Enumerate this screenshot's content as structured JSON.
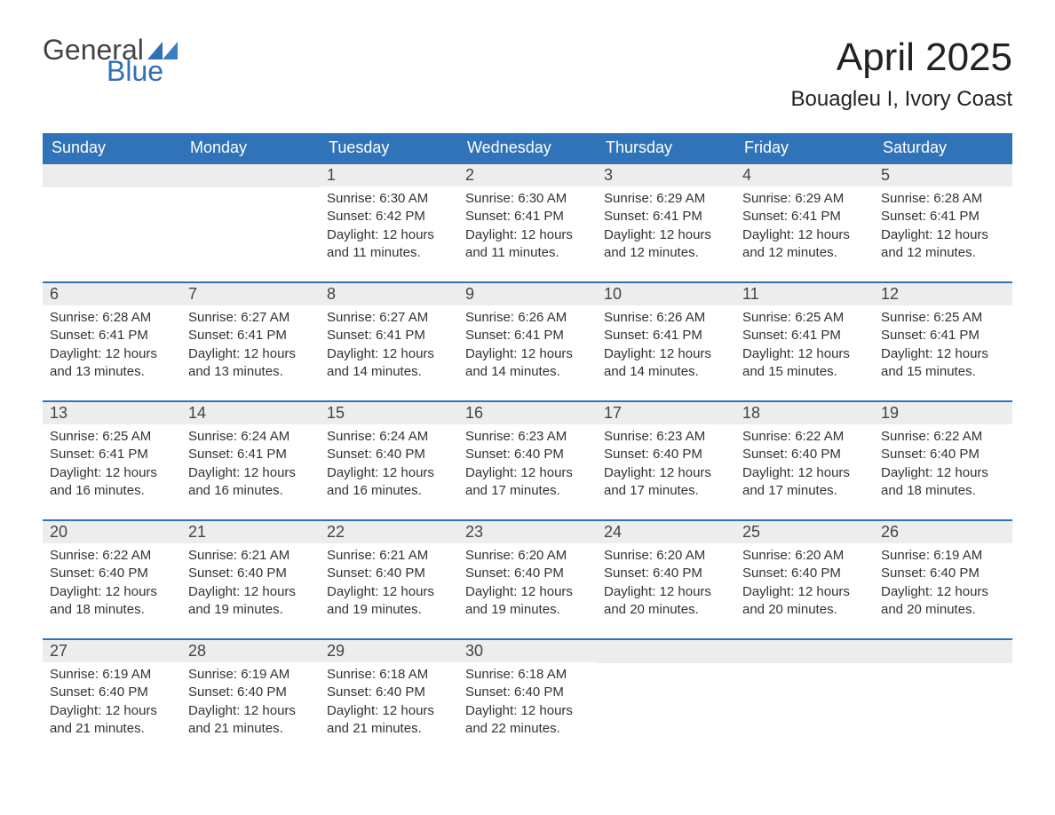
{
  "logo": {
    "textA": "General",
    "textB": "Blue",
    "colorA": "#444444",
    "colorB": "#2f70b6"
  },
  "title": "April 2025",
  "location": "Bouagleu I, Ivory Coast",
  "colors": {
    "header_bg": "#3173b8",
    "header_text": "#ffffff",
    "daynum_bg": "#ededed",
    "row_border": "#3173b8",
    "body_text": "#333333",
    "bg": "#ffffff"
  },
  "day_headers": [
    "Sunday",
    "Monday",
    "Tuesday",
    "Wednesday",
    "Thursday",
    "Friday",
    "Saturday"
  ],
  "weeks": [
    [
      null,
      null,
      {
        "n": "1",
        "sunrise": "Sunrise: 6:30 AM",
        "sunset": "Sunset: 6:42 PM",
        "dayl1": "Daylight: 12 hours",
        "dayl2": "and 11 minutes."
      },
      {
        "n": "2",
        "sunrise": "Sunrise: 6:30 AM",
        "sunset": "Sunset: 6:41 PM",
        "dayl1": "Daylight: 12 hours",
        "dayl2": "and 11 minutes."
      },
      {
        "n": "3",
        "sunrise": "Sunrise: 6:29 AM",
        "sunset": "Sunset: 6:41 PM",
        "dayl1": "Daylight: 12 hours",
        "dayl2": "and 12 minutes."
      },
      {
        "n": "4",
        "sunrise": "Sunrise: 6:29 AM",
        "sunset": "Sunset: 6:41 PM",
        "dayl1": "Daylight: 12 hours",
        "dayl2": "and 12 minutes."
      },
      {
        "n": "5",
        "sunrise": "Sunrise: 6:28 AM",
        "sunset": "Sunset: 6:41 PM",
        "dayl1": "Daylight: 12 hours",
        "dayl2": "and 12 minutes."
      }
    ],
    [
      {
        "n": "6",
        "sunrise": "Sunrise: 6:28 AM",
        "sunset": "Sunset: 6:41 PM",
        "dayl1": "Daylight: 12 hours",
        "dayl2": "and 13 minutes."
      },
      {
        "n": "7",
        "sunrise": "Sunrise: 6:27 AM",
        "sunset": "Sunset: 6:41 PM",
        "dayl1": "Daylight: 12 hours",
        "dayl2": "and 13 minutes."
      },
      {
        "n": "8",
        "sunrise": "Sunrise: 6:27 AM",
        "sunset": "Sunset: 6:41 PM",
        "dayl1": "Daylight: 12 hours",
        "dayl2": "and 14 minutes."
      },
      {
        "n": "9",
        "sunrise": "Sunrise: 6:26 AM",
        "sunset": "Sunset: 6:41 PM",
        "dayl1": "Daylight: 12 hours",
        "dayl2": "and 14 minutes."
      },
      {
        "n": "10",
        "sunrise": "Sunrise: 6:26 AM",
        "sunset": "Sunset: 6:41 PM",
        "dayl1": "Daylight: 12 hours",
        "dayl2": "and 14 minutes."
      },
      {
        "n": "11",
        "sunrise": "Sunrise: 6:25 AM",
        "sunset": "Sunset: 6:41 PM",
        "dayl1": "Daylight: 12 hours",
        "dayl2": "and 15 minutes."
      },
      {
        "n": "12",
        "sunrise": "Sunrise: 6:25 AM",
        "sunset": "Sunset: 6:41 PM",
        "dayl1": "Daylight: 12 hours",
        "dayl2": "and 15 minutes."
      }
    ],
    [
      {
        "n": "13",
        "sunrise": "Sunrise: 6:25 AM",
        "sunset": "Sunset: 6:41 PM",
        "dayl1": "Daylight: 12 hours",
        "dayl2": "and 16 minutes."
      },
      {
        "n": "14",
        "sunrise": "Sunrise: 6:24 AM",
        "sunset": "Sunset: 6:41 PM",
        "dayl1": "Daylight: 12 hours",
        "dayl2": "and 16 minutes."
      },
      {
        "n": "15",
        "sunrise": "Sunrise: 6:24 AM",
        "sunset": "Sunset: 6:40 PM",
        "dayl1": "Daylight: 12 hours",
        "dayl2": "and 16 minutes."
      },
      {
        "n": "16",
        "sunrise": "Sunrise: 6:23 AM",
        "sunset": "Sunset: 6:40 PM",
        "dayl1": "Daylight: 12 hours",
        "dayl2": "and 17 minutes."
      },
      {
        "n": "17",
        "sunrise": "Sunrise: 6:23 AM",
        "sunset": "Sunset: 6:40 PM",
        "dayl1": "Daylight: 12 hours",
        "dayl2": "and 17 minutes."
      },
      {
        "n": "18",
        "sunrise": "Sunrise: 6:22 AM",
        "sunset": "Sunset: 6:40 PM",
        "dayl1": "Daylight: 12 hours",
        "dayl2": "and 17 minutes."
      },
      {
        "n": "19",
        "sunrise": "Sunrise: 6:22 AM",
        "sunset": "Sunset: 6:40 PM",
        "dayl1": "Daylight: 12 hours",
        "dayl2": "and 18 minutes."
      }
    ],
    [
      {
        "n": "20",
        "sunrise": "Sunrise: 6:22 AM",
        "sunset": "Sunset: 6:40 PM",
        "dayl1": "Daylight: 12 hours",
        "dayl2": "and 18 minutes."
      },
      {
        "n": "21",
        "sunrise": "Sunrise: 6:21 AM",
        "sunset": "Sunset: 6:40 PM",
        "dayl1": "Daylight: 12 hours",
        "dayl2": "and 19 minutes."
      },
      {
        "n": "22",
        "sunrise": "Sunrise: 6:21 AM",
        "sunset": "Sunset: 6:40 PM",
        "dayl1": "Daylight: 12 hours",
        "dayl2": "and 19 minutes."
      },
      {
        "n": "23",
        "sunrise": "Sunrise: 6:20 AM",
        "sunset": "Sunset: 6:40 PM",
        "dayl1": "Daylight: 12 hours",
        "dayl2": "and 19 minutes."
      },
      {
        "n": "24",
        "sunrise": "Sunrise: 6:20 AM",
        "sunset": "Sunset: 6:40 PM",
        "dayl1": "Daylight: 12 hours",
        "dayl2": "and 20 minutes."
      },
      {
        "n": "25",
        "sunrise": "Sunrise: 6:20 AM",
        "sunset": "Sunset: 6:40 PM",
        "dayl1": "Daylight: 12 hours",
        "dayl2": "and 20 minutes."
      },
      {
        "n": "26",
        "sunrise": "Sunrise: 6:19 AM",
        "sunset": "Sunset: 6:40 PM",
        "dayl1": "Daylight: 12 hours",
        "dayl2": "and 20 minutes."
      }
    ],
    [
      {
        "n": "27",
        "sunrise": "Sunrise: 6:19 AM",
        "sunset": "Sunset: 6:40 PM",
        "dayl1": "Daylight: 12 hours",
        "dayl2": "and 21 minutes."
      },
      {
        "n": "28",
        "sunrise": "Sunrise: 6:19 AM",
        "sunset": "Sunset: 6:40 PM",
        "dayl1": "Daylight: 12 hours",
        "dayl2": "and 21 minutes."
      },
      {
        "n": "29",
        "sunrise": "Sunrise: 6:18 AM",
        "sunset": "Sunset: 6:40 PM",
        "dayl1": "Daylight: 12 hours",
        "dayl2": "and 21 minutes."
      },
      {
        "n": "30",
        "sunrise": "Sunrise: 6:18 AM",
        "sunset": "Sunset: 6:40 PM",
        "dayl1": "Daylight: 12 hours",
        "dayl2": "and 22 minutes."
      },
      null,
      null,
      null
    ]
  ]
}
